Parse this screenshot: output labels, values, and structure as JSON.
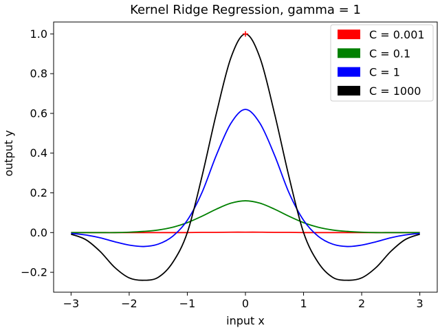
{
  "chart_data": {
    "type": "line",
    "title": "Kernel Ridge Regression, gamma = 1",
    "xlabel": "input x",
    "ylabel": "output y",
    "xlim": [
      -3.3,
      3.3
    ],
    "ylim": [
      -0.3,
      1.06
    ],
    "xticks": [
      -3,
      -2,
      -1,
      0,
      1,
      2,
      3
    ],
    "xtick_labels": [
      "−3",
      "−2",
      "−1",
      "0",
      "1",
      "2",
      "3"
    ],
    "yticks": [
      -0.2,
      0.0,
      0.2,
      0.4,
      0.6,
      0.8,
      1.0
    ],
    "ytick_labels": [
      "−0.2",
      "0.0",
      "0.2",
      "0.4",
      "0.6",
      "0.8",
      "1.0"
    ],
    "grid": false,
    "legend_position": "top-right",
    "x": [
      -3.0,
      -2.75,
      -2.5,
      -2.25,
      -2.0,
      -1.75,
      -1.5,
      -1.25,
      -1.0,
      -0.75,
      -0.5,
      -0.25,
      0.0,
      0.25,
      0.5,
      0.75,
      1.0,
      1.25,
      1.5,
      1.75,
      2.0,
      2.25,
      2.5,
      2.75,
      3.0
    ],
    "series": [
      {
        "name": "C = 0.001",
        "color": "#ff0000",
        "values": [
          0.0,
          0.0,
          0.0,
          0.0,
          0.0,
          0.0,
          0.0,
          0.0,
          0.0,
          0.001,
          0.001,
          0.002,
          0.002,
          0.002,
          0.001,
          0.001,
          0.0,
          0.0,
          0.0,
          0.0,
          0.0,
          0.0,
          0.0,
          0.0,
          0.0
        ]
      },
      {
        "name": "C = 0.1",
        "color": "#008000",
        "values": [
          0.0,
          0.0,
          0.0,
          0.0,
          0.002,
          0.006,
          0.013,
          0.027,
          0.05,
          0.082,
          0.118,
          0.148,
          0.16,
          0.148,
          0.118,
          0.082,
          0.05,
          0.027,
          0.013,
          0.006,
          0.002,
          0.0,
          0.0,
          0.0,
          0.0
        ]
      },
      {
        "name": "C = 1",
        "color": "#0000ff",
        "values": [
          -0.004,
          -0.012,
          -0.026,
          -0.046,
          -0.063,
          -0.07,
          -0.058,
          -0.018,
          0.062,
          0.2,
          0.39,
          0.55,
          0.62,
          0.55,
          0.39,
          0.2,
          0.062,
          -0.018,
          -0.058,
          -0.07,
          -0.063,
          -0.046,
          -0.026,
          -0.012,
          -0.004
        ]
      },
      {
        "name": "C = 1000",
        "color": "#000000",
        "values": [
          -0.008,
          -0.035,
          -0.095,
          -0.175,
          -0.228,
          -0.24,
          -0.225,
          -0.15,
          0.0,
          0.28,
          0.6,
          0.88,
          1.0,
          0.88,
          0.6,
          0.28,
          0.0,
          -0.15,
          -0.225,
          -0.24,
          -0.228,
          -0.175,
          -0.095,
          -0.035,
          -0.008
        ]
      }
    ],
    "annotations": [
      {
        "type": "marker",
        "symbol": "+",
        "x": 0,
        "y": 1.0,
        "color": "#ff0000"
      }
    ]
  }
}
